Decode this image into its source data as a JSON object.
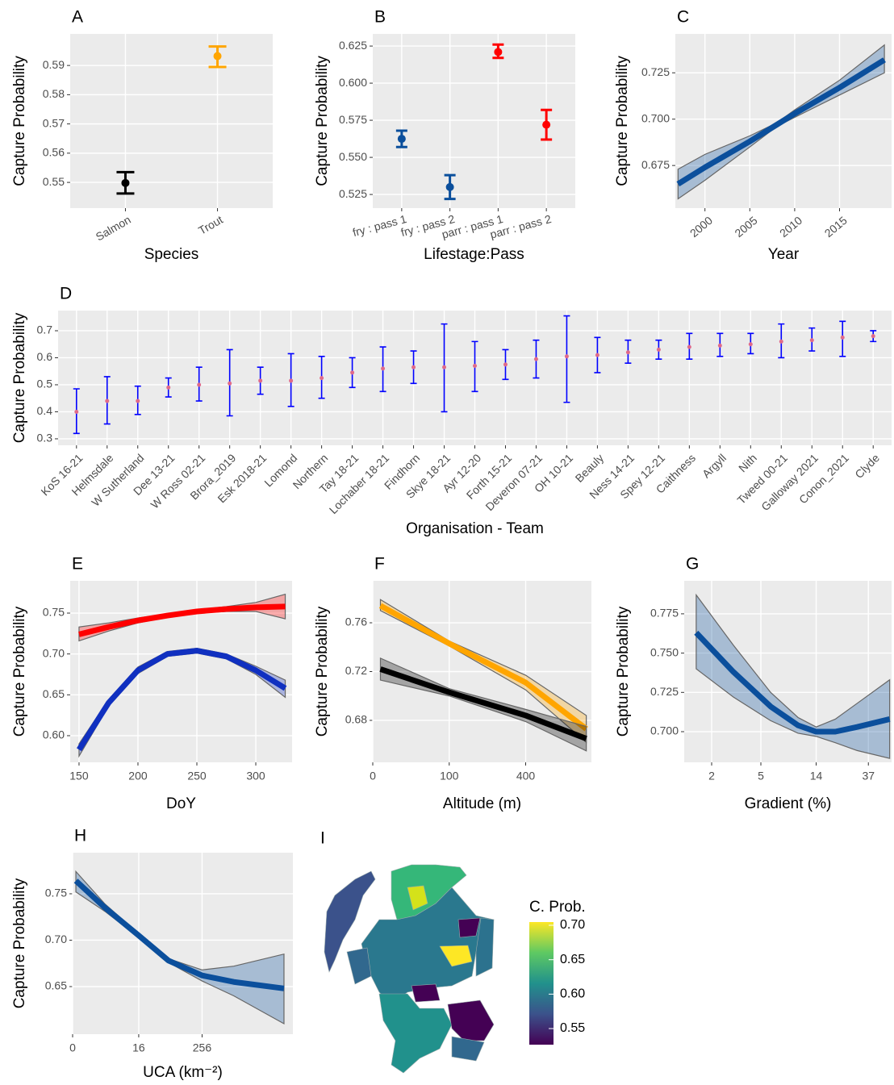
{
  "chart_data": [
    {
      "type": "errorbar",
      "panel": "A",
      "ylabel": "Capture Probability",
      "xlabel": "Species",
      "categories": [
        "Salmon",
        "Trout"
      ],
      "values": [
        0.5498,
        0.5932
      ],
      "lower": [
        0.5462,
        0.5895
      ],
      "upper": [
        0.5535,
        0.5965
      ],
      "colors": [
        "#000000",
        "#ffa500"
      ],
      "ylim": [
        0.5412,
        0.6008
      ],
      "yticks": [
        0.55,
        0.56,
        0.57,
        0.58,
        0.59
      ],
      "grid": true
    },
    {
      "type": "errorbar",
      "panel": "B",
      "ylabel": "Capture Probability",
      "xlabel": "Lifestage:Pass",
      "categories": [
        "fry : pass  1",
        "fry : pass  2",
        "parr : pass  1",
        "parr : pass  2"
      ],
      "values": [
        0.5625,
        0.53,
        0.621,
        0.572
      ],
      "lower": [
        0.557,
        0.522,
        0.617,
        0.562
      ],
      "upper": [
        0.568,
        0.538,
        0.626,
        0.582
      ],
      "colors": [
        "#0b4f9c",
        "#0b4f9c",
        "#ff0000",
        "#ff0000"
      ],
      "ylim": [
        0.5158,
        0.6332
      ],
      "yticks": [
        0.525,
        {
          "value": 0.55,
          "label": "0.550"
        },
        0.575,
        {
          "value": 0.6,
          "label": "0.600"
        },
        0.625
      ],
      "grid": true
    },
    {
      "type": "line",
      "panel": "C",
      "ylabel": "Capture Probability",
      "xlabel": "Year",
      "x": [
        1997,
        2000,
        2005,
        2008,
        2010,
        2015,
        2020
      ],
      "series": [
        {
          "color": "#0b4f9c",
          "values": [
            0.665,
            0.674,
            0.688,
            0.697,
            0.703,
            0.717,
            0.732
          ],
          "lower": [
            0.657,
            0.667,
            0.685,
            0.696,
            0.701,
            0.713,
            0.725
          ],
          "upper": [
            0.673,
            0.681,
            0.691,
            0.698,
            0.705,
            0.721,
            0.74
          ]
        }
      ],
      "xlim": [
        1996.7,
        2020.8
      ],
      "xticks": [
        2000,
        2005,
        2010,
        2015
      ],
      "ylim": [
        0.652,
        0.746
      ],
      "yticks": [
        0.675,
        {
          "value": 0.7,
          "label": "0.700"
        },
        0.725
      ],
      "grid": true
    },
    {
      "type": "errorbar",
      "panel": "D",
      "ylabel": "Capture Probability",
      "xlabel": "Organisation - Team",
      "categories": [
        "KoS 16-21",
        "Helmsdale",
        "W Sutherland",
        "Dee 13-21",
        "W Ross 02-21",
        "Brora_2019",
        "Esk 2018-21",
        "Lomond",
        "Northern",
        "Tay 18-21",
        "Lochaber 18-21",
        "Findhorn",
        "Skye 18-21",
        "Ayr 12-20",
        "Forth 15-21",
        "Deveron 07-21",
        "OH 10-21",
        "Beauly",
        "Ness 14-21",
        "Spey 12-21",
        "Caithness",
        "Argyll",
        "Nith",
        "Tweed 00-21",
        "Galloway 2021",
        "Conon_2021",
        "Clyde"
      ],
      "values": [
        0.4,
        0.44,
        0.44,
        0.49,
        0.5,
        0.505,
        0.515,
        0.515,
        0.525,
        0.545,
        0.56,
        0.565,
        0.565,
        0.57,
        0.575,
        0.595,
        0.605,
        0.61,
        0.62,
        0.63,
        0.64,
        0.645,
        0.65,
        0.66,
        0.665,
        0.675,
        0.68
      ],
      "lower": [
        0.32,
        0.355,
        0.39,
        0.455,
        0.44,
        0.385,
        0.465,
        0.42,
        0.45,
        0.49,
        0.475,
        0.505,
        0.4,
        0.475,
        0.52,
        0.525,
        0.435,
        0.545,
        0.58,
        0.595,
        0.595,
        0.605,
        0.615,
        0.6,
        0.625,
        0.605,
        0.66
      ],
      "upper": [
        0.485,
        0.53,
        0.495,
        0.525,
        0.565,
        0.63,
        0.565,
        0.615,
        0.605,
        0.6,
        0.64,
        0.625,
        0.725,
        0.66,
        0.63,
        0.665,
        0.755,
        0.675,
        0.665,
        0.665,
        0.69,
        0.69,
        0.69,
        0.725,
        0.71,
        0.735,
        0.7
      ],
      "color": "#0000ff",
      "point_color": "#e06a8a",
      "ylim": [
        0.276,
        0.7746
      ],
      "yticks": [
        0.3,
        0.4,
        0.5,
        0.6,
        0.7
      ],
      "grid": true
    },
    {
      "type": "line",
      "panel": "E",
      "ylabel": "Capture Probability",
      "xlabel": "DoY",
      "x": [
        150,
        175,
        200,
        225,
        250,
        275,
        300,
        325
      ],
      "series": [
        {
          "color": "#ff0000",
          "values": [
            0.724,
            0.733,
            0.741,
            0.747,
            0.752,
            0.755,
            0.757,
            0.758
          ],
          "lower": [
            0.716,
            0.728,
            0.738,
            0.745,
            0.75,
            0.752,
            0.752,
            0.743
          ],
          "upper": [
            0.733,
            0.738,
            0.744,
            0.749,
            0.754,
            0.758,
            0.763,
            0.773
          ]
        },
        {
          "color": "#1030c0",
          "values": [
            0.583,
            0.64,
            0.68,
            0.7,
            0.704,
            0.697,
            0.68,
            0.658
          ],
          "lower": [
            0.575,
            0.636,
            0.676,
            0.697,
            0.701,
            0.694,
            0.675,
            0.647
          ],
          "upper": [
            0.59,
            0.644,
            0.684,
            0.703,
            0.707,
            0.7,
            0.685,
            0.668
          ]
        }
      ],
      "xlim": [
        142.5,
        330.8
      ],
      "xticks": [
        150,
        200,
        250,
        300
      ],
      "ylim": [
        0.5674,
        0.7895
      ],
      "yticks": [
        {
          "value": 0.6,
          "label": "0.60"
        },
        0.65,
        {
          "value": 0.7,
          "label": "0.70"
        },
        0.75
      ],
      "grid": true
    },
    {
      "type": "line",
      "panel": "F",
      "ylabel": "Capture Probability",
      "xlabel": "Altitude (m)",
      "xscale": "sqrt",
      "x": [
        1,
        100,
        400,
        780
      ],
      "series": [
        {
          "color": "#ffa500",
          "values": [
            0.774,
            0.743,
            0.711,
            0.673
          ],
          "lower": [
            0.77,
            0.741,
            0.705,
            0.662
          ],
          "upper": [
            0.779,
            0.745,
            0.717,
            0.684
          ]
        },
        {
          "color": "#000000",
          "values": [
            0.722,
            0.703,
            0.684,
            0.665
          ],
          "lower": [
            0.713,
            0.7,
            0.679,
            0.655
          ],
          "upper": [
            0.731,
            0.706,
            0.689,
            0.675
          ]
        }
      ],
      "xlim": [
        0,
        818
      ],
      "xticks": [
        0,
        100,
        400
      ],
      "ylim": [
        0.6456,
        0.7944
      ],
      "yticks": [
        0.68,
        0.72,
        0.76
      ],
      "grid": true
    },
    {
      "type": "line",
      "panel": "G",
      "ylabel": "Capture Probability",
      "xlabel": "Gradient (%)",
      "xscale": "log",
      "x": [
        1.5,
        3,
        6,
        10,
        14,
        20,
        30,
        55
      ],
      "series": [
        {
          "color": "#0b4f9c",
          "values": [
            0.763,
            0.738,
            0.716,
            0.704,
            0.7,
            0.7,
            0.703,
            0.708
          ],
          "lower": [
            0.74,
            0.722,
            0.707,
            0.699,
            0.697,
            0.693,
            0.688,
            0.683
          ],
          "upper": [
            0.787,
            0.755,
            0.725,
            0.709,
            0.703,
            0.708,
            0.718,
            0.733
          ]
        }
      ],
      "xlim": [
        1.2,
        57
      ],
      "xticks": [
        2,
        5,
        14,
        37
      ],
      "ylim": [
        0.6805,
        0.796
      ],
      "yticks": [
        {
          "value": 0.7,
          "label": "0.700"
        },
        0.725,
        {
          "value": 0.75,
          "label": "0.750"
        },
        0.775
      ],
      "grid": true
    },
    {
      "type": "line",
      "panel": "H",
      "ylabel": "Capture Probability",
      "xlabel": "UCA (km⁻²)",
      "xscale": "log1p",
      "x": [
        0.15,
        3,
        16,
        60,
        256,
        1000,
        8600
      ],
      "series": [
        {
          "color": "#0b4f9c",
          "values": [
            0.764,
            0.735,
            0.705,
            0.678,
            0.662,
            0.655,
            0.648
          ],
          "lower": [
            0.752,
            0.731,
            0.703,
            0.676,
            0.656,
            0.64,
            0.61
          ],
          "upper": [
            0.774,
            0.739,
            0.707,
            0.68,
            0.668,
            0.672,
            0.685
          ]
        }
      ],
      "xlim": [
        0,
        12600
      ],
      "xticks": [
        0,
        16,
        256
      ],
      "ylim": [
        0.5987,
        0.7943
      ],
      "yticks": [
        0.65,
        {
          "value": 0.7,
          "label": "0.70"
        },
        0.75
      ],
      "grid": true
    },
    {
      "type": "map",
      "panel": "I",
      "colorbar": {
        "title": "C. Prob.",
        "lim": [
          0.5266,
          0.7047
        ],
        "ticks": [
          0.55,
          {
            "value": 0.6,
            "label": "0.60"
          },
          0.65,
          {
            "value": 0.7,
            "label": "0.70"
          }
        ]
      }
    }
  ]
}
